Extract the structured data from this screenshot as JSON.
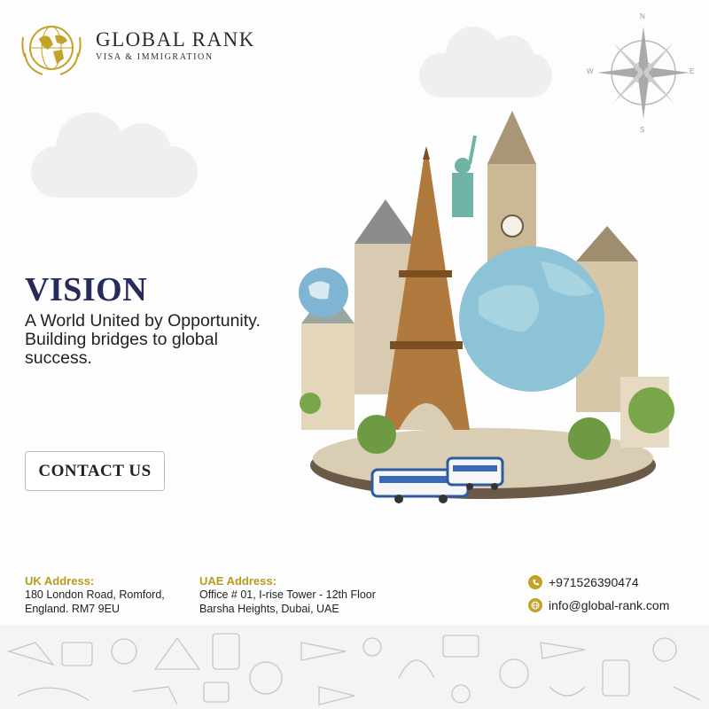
{
  "brand": {
    "name": "GLOBAL RANK",
    "tagline": "VISA & IMMIGRATION"
  },
  "compass": {
    "n": "N",
    "s": "S",
    "e": "E",
    "w": "W"
  },
  "hero": {
    "title": "VISION",
    "text": "A World United by Opportunity. Building bridges to global success."
  },
  "cta": {
    "label": "CONTACT US"
  },
  "footer": {
    "uk": {
      "label": "UK Address:",
      "line1": "180 London Road, Romford,",
      "line2": "England. RM7 9EU"
    },
    "uae": {
      "label": "UAE Address:",
      "line1": "Office # 01, I-rise Tower - 12th Floor",
      "line2": "Barsha Heights, Dubai, UAE"
    },
    "phone": "+971526390474",
    "email": "info@global-rank.com"
  },
  "colors": {
    "navy": "#252c5c",
    "gold": "#c2a227"
  }
}
